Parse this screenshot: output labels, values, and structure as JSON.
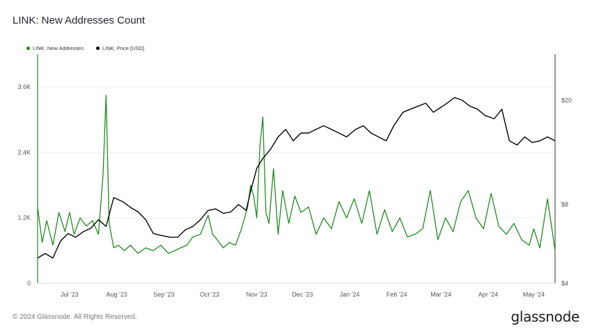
{
  "header": {
    "title": "LINK: New Addresses Count"
  },
  "footer": {
    "copyright": "© 2024 Glassnode. All Rights Reserved.",
    "brand": "glassnode"
  },
  "colors": {
    "addresses": "#1f8a1f",
    "price": "#000000",
    "grid": "#eeeeee"
  },
  "chart_data": {
    "type": "line",
    "title": "LINK: New Addresses Count",
    "x_ticks": [
      "Jul '23",
      "Aug '23",
      "Sep '23",
      "Oct '23",
      "Nov '23",
      "Dec '23",
      "Jan '24",
      "Feb '24",
      "Mar '24",
      "Apr '24",
      "May '24"
    ],
    "y_left_ticks": [
      "0",
      "1.2K",
      "2.4K",
      "3.6K"
    ],
    "y_right_ticks": [
      "$4",
      "$8",
      "$20"
    ],
    "y_left_range": [
      0,
      4200
    ],
    "y_right": {
      "scale": "log",
      "range": [
        4,
        30
      ]
    },
    "legend": {
      "position": "top-left"
    },
    "grid": true,
    "x_range": [
      "2023-06-10",
      "2024-05-15"
    ],
    "series": [
      {
        "name": "LINK: New Addresses",
        "axis": "left",
        "x": [
          "2023-06-10",
          "2023-06-13",
          "2023-06-16",
          "2023-06-20",
          "2023-06-24",
          "2023-06-28",
          "2023-07-01",
          "2023-07-04",
          "2023-07-08",
          "2023-07-12",
          "2023-07-16",
          "2023-07-20",
          "2023-07-23",
          "2023-07-25",
          "2023-07-27",
          "2023-07-30",
          "2023-08-02",
          "2023-08-06",
          "2023-08-10",
          "2023-08-15",
          "2023-08-20",
          "2023-08-25",
          "2023-08-30",
          "2023-09-04",
          "2023-09-08",
          "2023-09-12",
          "2023-09-16",
          "2023-09-20",
          "2023-09-25",
          "2023-09-30",
          "2023-10-03",
          "2023-10-06",
          "2023-10-10",
          "2023-10-14",
          "2023-10-18",
          "2023-10-22",
          "2023-10-26",
          "2023-10-28",
          "2023-10-30",
          "2023-11-01",
          "2023-11-03",
          "2023-11-05",
          "2023-11-07",
          "2023-11-09",
          "2023-11-12",
          "2023-11-15",
          "2023-11-18",
          "2023-11-22",
          "2023-11-26",
          "2023-11-30",
          "2023-12-05",
          "2023-12-10",
          "2023-12-15",
          "2023-12-20",
          "2023-12-25",
          "2023-12-30",
          "2024-01-04",
          "2024-01-09",
          "2024-01-14",
          "2024-01-19",
          "2024-01-24",
          "2024-01-29",
          "2024-02-03",
          "2024-02-08",
          "2024-02-13",
          "2024-02-18",
          "2024-02-23",
          "2024-02-28",
          "2024-03-04",
          "2024-03-09",
          "2024-03-14",
          "2024-03-19",
          "2024-03-24",
          "2024-03-29",
          "2024-04-03",
          "2024-04-08",
          "2024-04-13",
          "2024-04-18",
          "2024-04-23",
          "2024-04-28",
          "2024-05-01",
          "2024-05-05",
          "2024-05-10",
          "2024-05-15"
        ],
        "values": [
          1400,
          750,
          1150,
          700,
          1300,
          950,
          1300,
          900,
          1200,
          1050,
          1150,
          900,
          2000,
          3450,
          1100,
          650,
          700,
          600,
          700,
          550,
          650,
          600,
          700,
          550,
          600,
          650,
          700,
          850,
          900,
          1250,
          900,
          800,
          650,
          750,
          700,
          1000,
          1400,
          1800,
          1600,
          1200,
          2500,
          3050,
          1300,
          1100,
          2100,
          900,
          1700,
          1100,
          1600,
          1300,
          1400,
          900,
          1200,
          1000,
          1500,
          1200,
          1550,
          1100,
          1700,
          900,
          1350,
          950,
          1200,
          850,
          900,
          1000,
          1700,
          800,
          1200,
          950,
          1500,
          1700,
          1200,
          1000,
          1650,
          1050,
          900,
          1100,
          800,
          700,
          1000,
          650,
          1550,
          600
        ]
      },
      {
        "name": "LINK: Price [USD]",
        "axis": "right",
        "x": [
          "2023-06-10",
          "2023-06-15",
          "2023-06-20",
          "2023-06-25",
          "2023-06-30",
          "2023-07-05",
          "2023-07-10",
          "2023-07-15",
          "2023-07-20",
          "2023-07-25",
          "2023-07-30",
          "2023-08-05",
          "2023-08-10",
          "2023-08-15",
          "2023-08-20",
          "2023-08-25",
          "2023-08-30",
          "2023-09-05",
          "2023-09-10",
          "2023-09-15",
          "2023-09-20",
          "2023-09-25",
          "2023-09-30",
          "2023-10-05",
          "2023-10-10",
          "2023-10-15",
          "2023-10-20",
          "2023-10-25",
          "2023-10-28",
          "2023-11-01",
          "2023-11-05",
          "2023-11-10",
          "2023-11-15",
          "2023-11-20",
          "2023-11-25",
          "2023-11-30",
          "2023-12-05",
          "2023-12-10",
          "2023-12-15",
          "2023-12-20",
          "2023-12-25",
          "2023-12-30",
          "2024-01-05",
          "2024-01-10",
          "2024-01-15",
          "2024-01-20",
          "2024-01-25",
          "2024-01-30",
          "2024-02-05",
          "2024-02-10",
          "2024-02-15",
          "2024-02-20",
          "2024-02-25",
          "2024-03-01",
          "2024-03-05",
          "2024-03-10",
          "2024-03-15",
          "2024-03-20",
          "2024-03-25",
          "2024-03-30",
          "2024-04-05",
          "2024-04-10",
          "2024-04-15",
          "2024-04-20",
          "2024-04-25",
          "2024-04-30",
          "2024-05-05",
          "2024-05-10",
          "2024-05-15"
        ],
        "values": [
          5.0,
          5.2,
          5.0,
          5.8,
          6.2,
          6.0,
          6.3,
          6.5,
          7.0,
          6.6,
          8.5,
          8.2,
          7.8,
          7.5,
          7.0,
          6.2,
          6.1,
          6.0,
          6.0,
          6.4,
          6.6,
          7.0,
          7.6,
          7.7,
          7.4,
          7.5,
          8.0,
          7.6,
          9.0,
          11.0,
          12.0,
          13.0,
          14.5,
          15.5,
          14.0,
          15.0,
          15.0,
          15.5,
          16.0,
          15.5,
          15.0,
          14.5,
          15.5,
          16.0,
          15.0,
          14.5,
          14.0,
          16.0,
          18.0,
          18.5,
          19.0,
          19.5,
          18.0,
          18.8,
          19.5,
          20.5,
          20.0,
          19.0,
          18.5,
          17.5,
          17.0,
          18.5,
          14.0,
          13.5,
          14.5,
          13.8,
          14.0,
          14.5,
          14.0
        ]
      }
    ]
  }
}
